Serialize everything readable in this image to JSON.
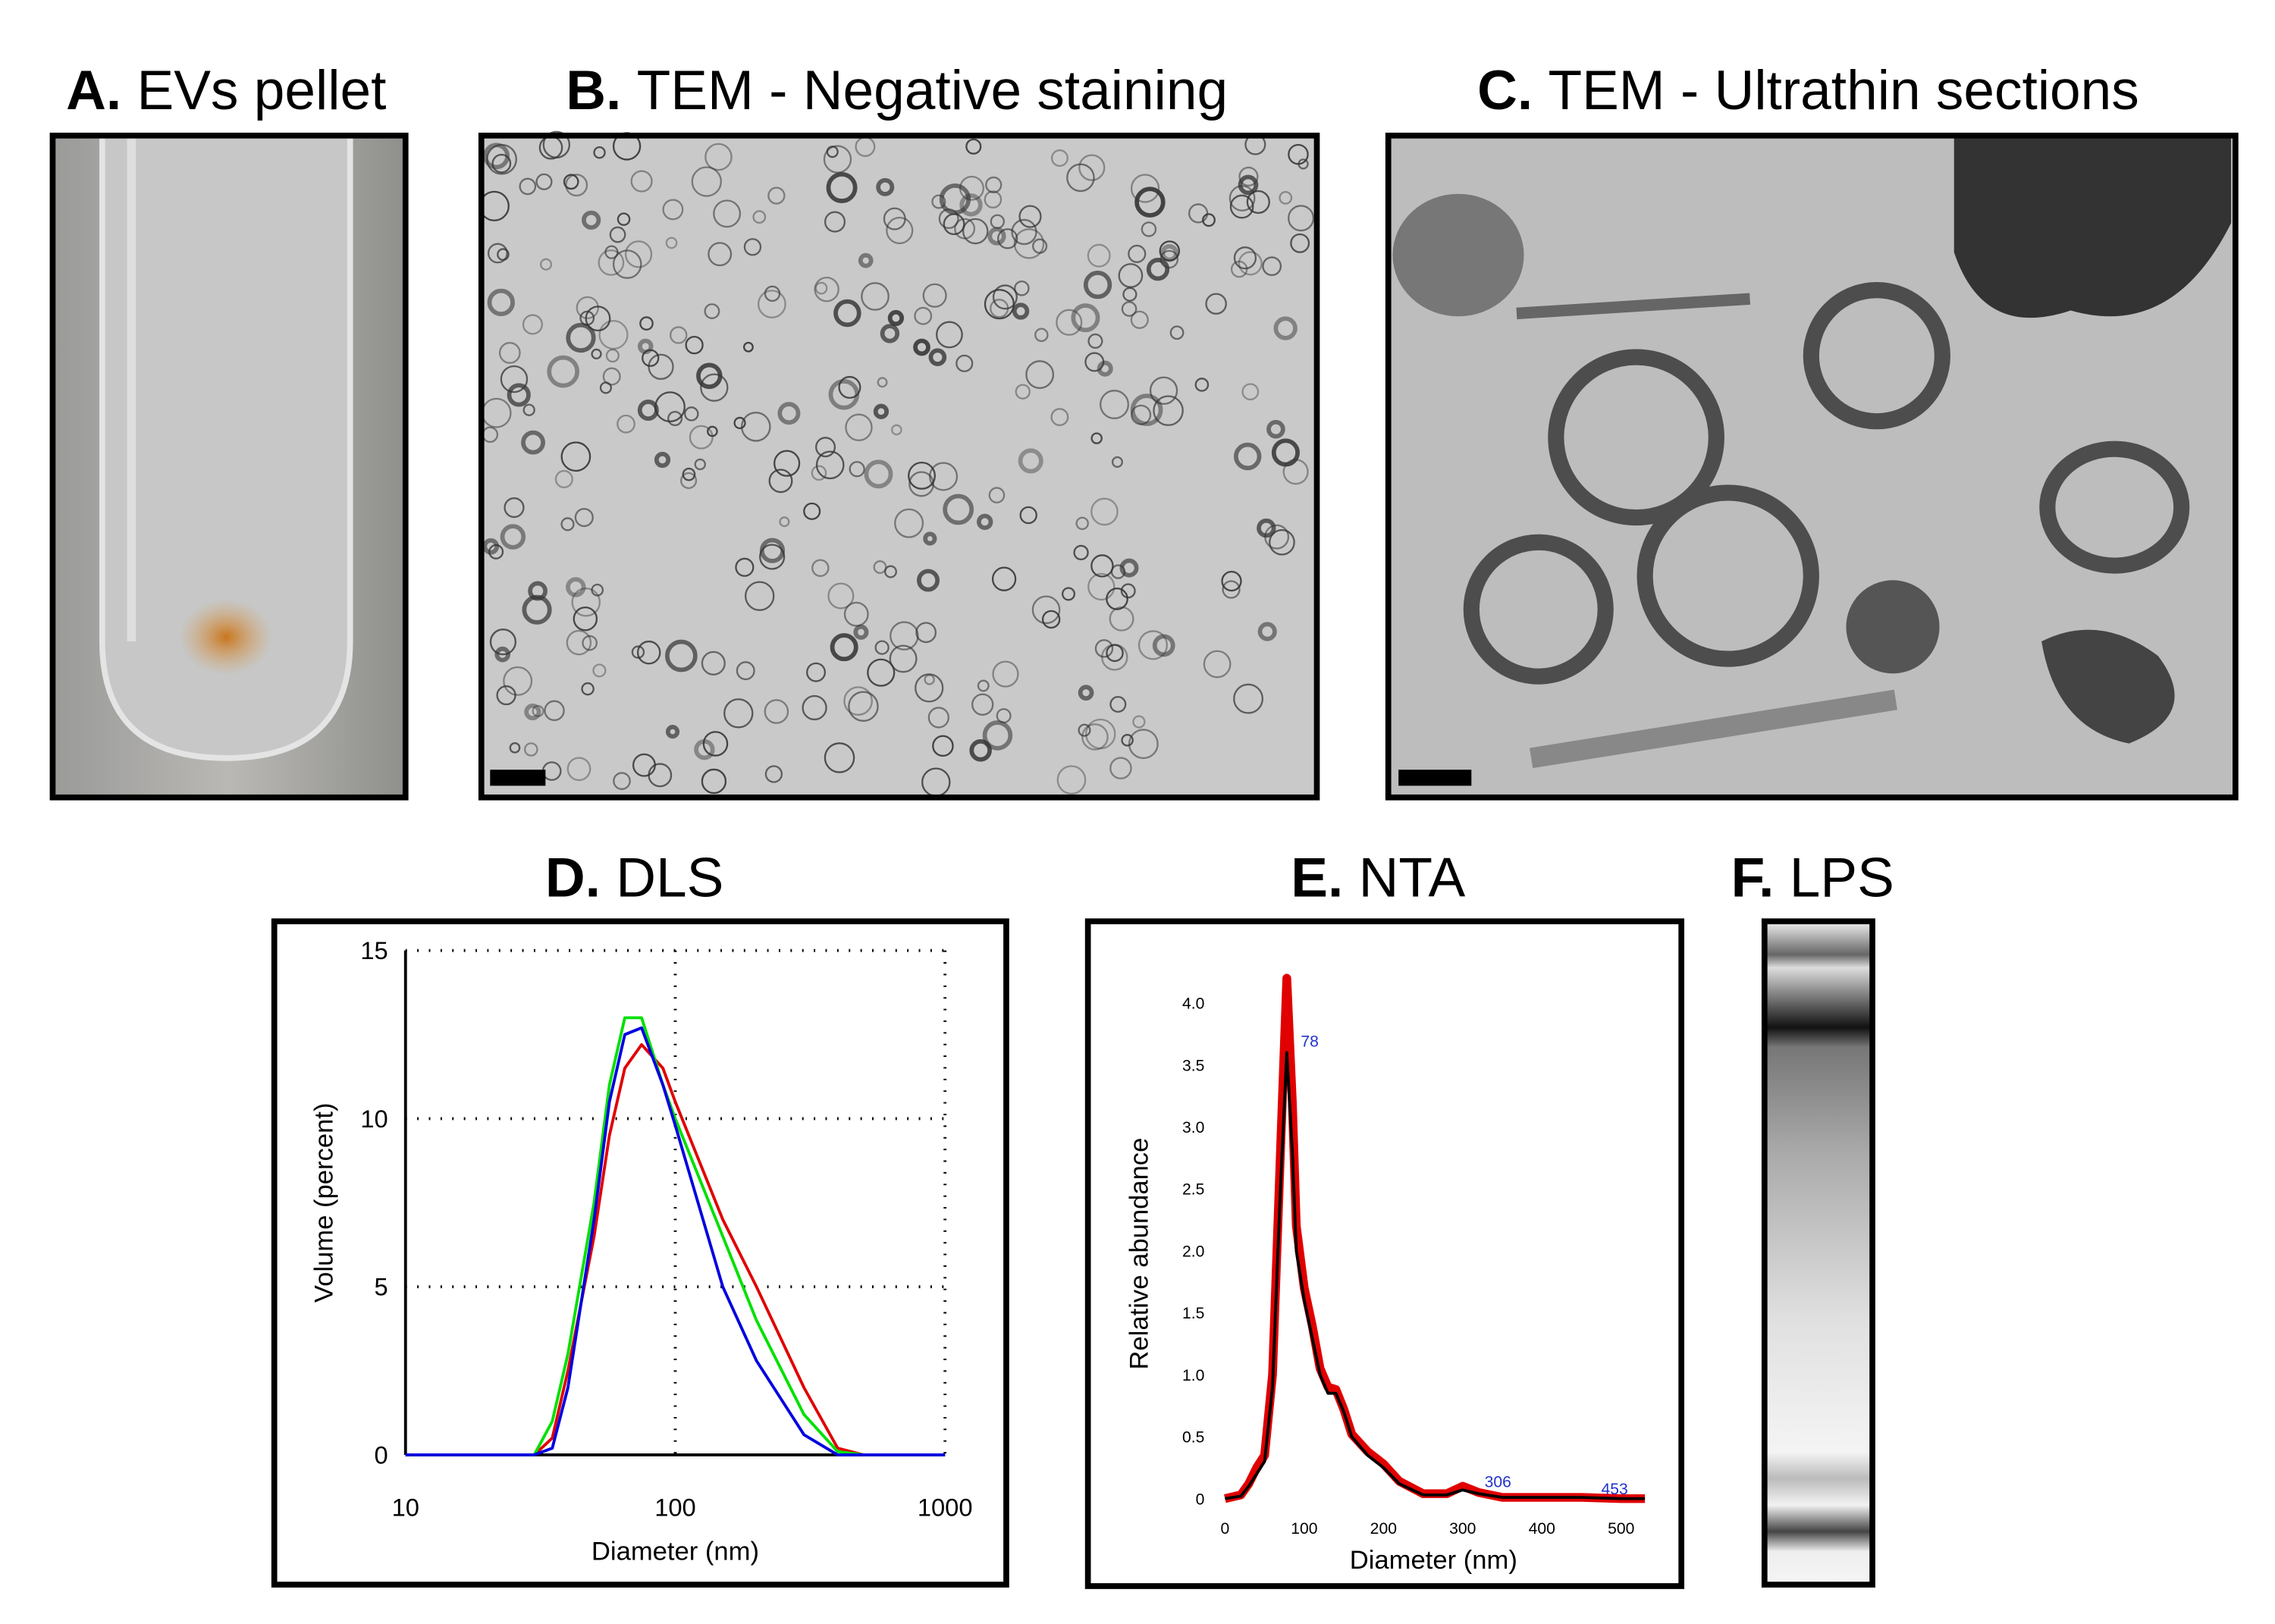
{
  "panels": [
    {
      "letter": "A.",
      "title": "EVs pellet"
    },
    {
      "letter": "B.",
      "title": "TEM - Negative staining"
    },
    {
      "letter": "C.",
      "title": "TEM - Ultrathin sections"
    },
    {
      "letter": "F.",
      "title": "LPS"
    }
  ],
  "chart_data": [
    {
      "type": "line",
      "panel_label": "D.",
      "title": "DLS",
      "x_label": "Diameter (nm)",
      "y_label": "Volume (percent)",
      "log_x": true,
      "grid": true,
      "x": [
        10,
        20,
        30,
        35,
        40,
        50,
        57,
        65,
        75,
        90,
        100,
        150,
        200,
        300,
        400,
        500,
        1000
      ],
      "series": [
        {
          "color": "#e00000",
          "values": [
            0,
            0,
            0,
            0.5,
            2.5,
            6.5,
            9.5,
            11.5,
            12.2,
            11.5,
            10.5,
            7,
            5,
            2,
            0.2,
            0,
            0
          ]
        },
        {
          "color": "#00e000",
          "values": [
            0,
            0,
            0,
            1,
            3,
            7.5,
            11,
            13,
            13,
            11,
            10,
            6.5,
            4,
            1.2,
            0.1,
            0,
            0
          ]
        },
        {
          "color": "#0000e0",
          "values": [
            0,
            0,
            0,
            0.2,
            2,
            7,
            10.5,
            12.5,
            12.7,
            11,
            9.8,
            5,
            2.8,
            0.6,
            0,
            0,
            0
          ]
        }
      ],
      "xlim": [
        10,
        1000
      ],
      "xticks": [
        10,
        100,
        1000
      ],
      "ylim": [
        0,
        15
      ],
      "yticks": [
        0,
        5,
        10,
        15
      ]
    },
    {
      "type": "line",
      "panel_label": "E.",
      "title": "NTA",
      "x_label": "Diameter (nm)",
      "y_label": "Relative abundance",
      "grid": false,
      "x": [
        0,
        20,
        30,
        40,
        50,
        60,
        70,
        78,
        85,
        90,
        100,
        110,
        120,
        130,
        140,
        150,
        160,
        180,
        200,
        220,
        250,
        280,
        300,
        320,
        350,
        400,
        450,
        500,
        530
      ],
      "series": [
        {
          "color": "#e00000",
          "values": [
            0,
            0.03,
            0.12,
            0.25,
            0.35,
            1.0,
            2.8,
            4.2,
            3.2,
            2.2,
            1.7,
            1.4,
            1.05,
            0.9,
            0.88,
            0.72,
            0.52,
            0.38,
            0.28,
            0.14,
            0.04,
            0.04,
            0.1,
            0.05,
            0.01,
            0.01,
            0.01,
            0,
            0
          ]
        },
        {
          "color": "#000000",
          "values": [
            0,
            0.02,
            0.1,
            0.2,
            0.3,
            0.9,
            2.5,
            3.6,
            2.8,
            2.0,
            1.6,
            1.3,
            1.0,
            0.85,
            0.85,
            0.7,
            0.5,
            0.35,
            0.25,
            0.12,
            0.03,
            0.03,
            0.07,
            0.04,
            0.01,
            0.01,
            0.01,
            0,
            0
          ]
        }
      ],
      "annotations": [
        "78",
        "306",
        "453"
      ],
      "xlim": [
        0,
        530
      ],
      "xticks": [
        0,
        100,
        200,
        300,
        400,
        500
      ],
      "ylim": [
        0,
        4.4
      ],
      "yticks": [
        0,
        0.5,
        {
          "value": 1,
          "label": "1.0"
        },
        1.5,
        {
          "value": 2,
          "label": "2.0"
        },
        2.5,
        {
          "value": 3,
          "label": "3.0"
        },
        3.5,
        {
          "value": 4,
          "label": "4.0"
        }
      ]
    }
  ]
}
